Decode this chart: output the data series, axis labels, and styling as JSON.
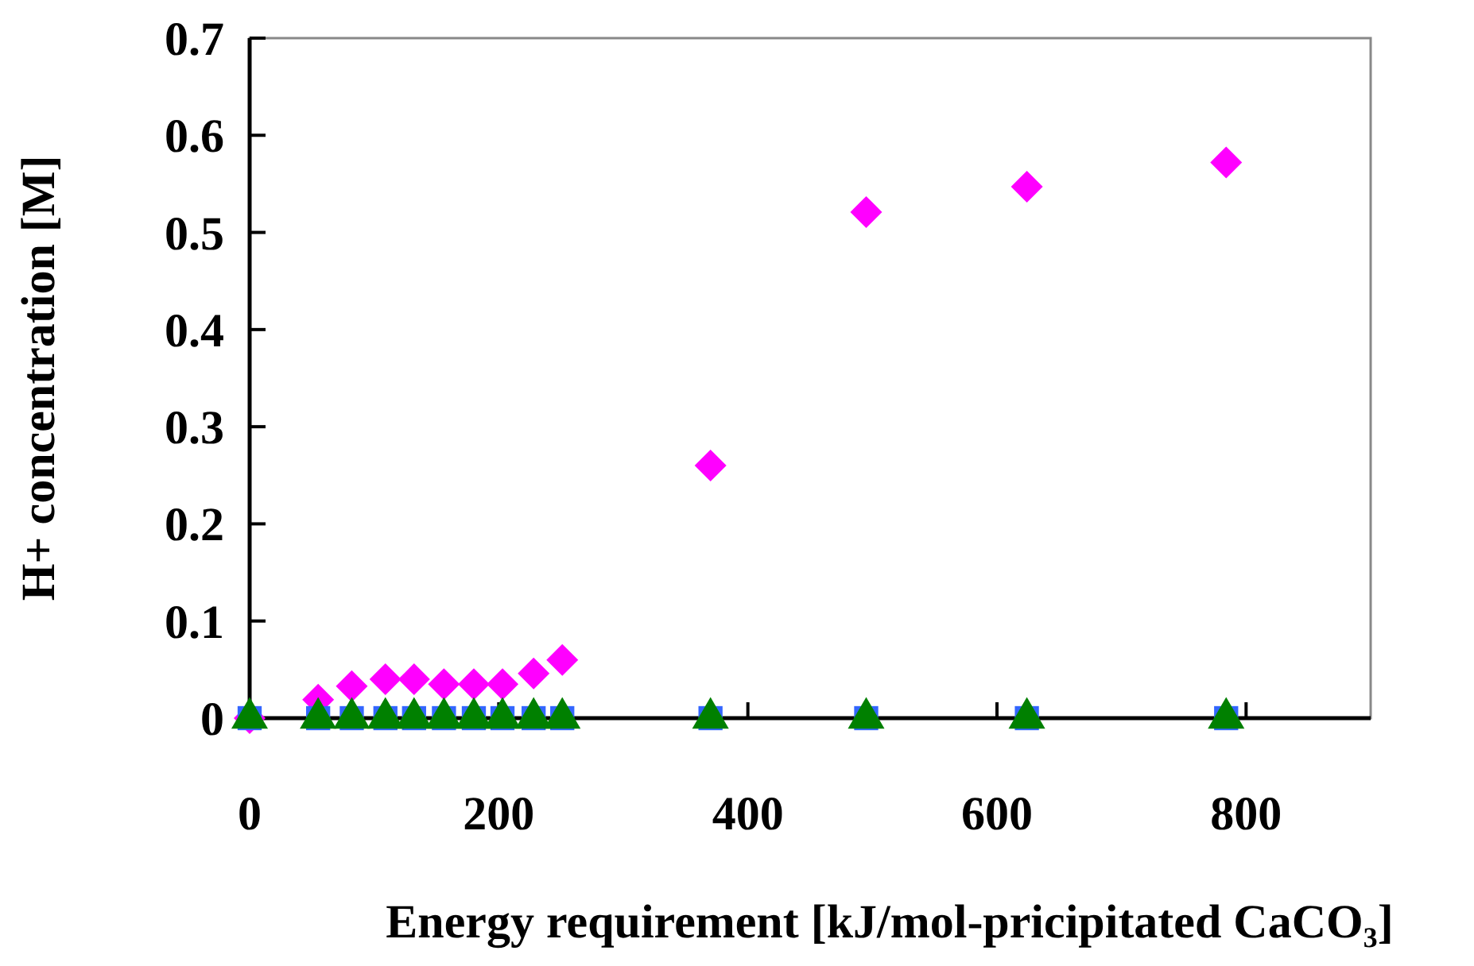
{
  "chart_data": {
    "type": "scatter",
    "xlabel": "Energy requirement [kJ/mol-pricipitated CaCO₃]",
    "ylabel": "H+ concentration [M]",
    "xlim": [
      0,
      900
    ],
    "xticks": [
      0,
      200,
      400,
      600,
      800
    ],
    "ylim": [
      0,
      0.7
    ],
    "yticks": [
      0,
      0.1,
      0.2,
      0.3,
      0.4,
      0.5,
      0.6,
      0.7
    ],
    "grid": false,
    "x": [
      0,
      55,
      82,
      109,
      132,
      156,
      180,
      203,
      228,
      251,
      370,
      495,
      624,
      784
    ],
    "series": [
      {
        "color": "#ff00ff",
        "marker": "diamond",
        "values": [
          0,
          0.019,
          0.033,
          0.04,
          0.04,
          0.035,
          0.035,
          0.035,
          0.046,
          0.06,
          0.26,
          0.521,
          0.547,
          0.572
        ]
      },
      {
        "color": "#3366ff",
        "marker": "square",
        "values": [
          0,
          0,
          0,
          0,
          0,
          0,
          0,
          0,
          0,
          0,
          0,
          0,
          0,
          0
        ]
      },
      {
        "color": "#008000",
        "marker": "triangle",
        "values": [
          0,
          0,
          0,
          0,
          0,
          0,
          0,
          0,
          0,
          0,
          0,
          0,
          0,
          0
        ]
      }
    ]
  }
}
